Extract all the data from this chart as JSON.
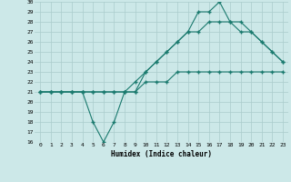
{
  "xlabel": "Humidex (Indice chaleur)",
  "background_color": "#cce8e8",
  "grid_color": "#aacccc",
  "line_color": "#1a7a6e",
  "xlim": [
    -0.5,
    23.5
  ],
  "ylim": [
    16,
    30
  ],
  "xticks": [
    0,
    1,
    2,
    3,
    4,
    5,
    6,
    7,
    8,
    9,
    10,
    11,
    12,
    13,
    14,
    15,
    16,
    17,
    18,
    19,
    20,
    21,
    22,
    23
  ],
  "yticks": [
    16,
    17,
    18,
    19,
    20,
    21,
    22,
    23,
    24,
    25,
    26,
    27,
    28,
    29,
    30
  ],
  "series1": [
    21,
    21,
    21,
    21,
    21,
    18,
    16,
    18,
    21,
    21,
    23,
    24,
    25,
    26,
    27,
    29,
    29,
    30,
    28,
    28,
    27,
    26,
    25,
    24
  ],
  "series2": [
    21,
    21,
    21,
    21,
    21,
    21,
    21,
    21,
    21,
    22,
    23,
    24,
    25,
    26,
    27,
    27,
    28,
    28,
    28,
    27,
    27,
    26,
    25,
    24
  ],
  "series3": [
    21,
    21,
    21,
    21,
    21,
    21,
    21,
    21,
    21,
    21,
    22,
    22,
    22,
    23,
    23,
    23,
    23,
    23,
    23,
    23,
    23,
    23,
    23,
    23
  ]
}
